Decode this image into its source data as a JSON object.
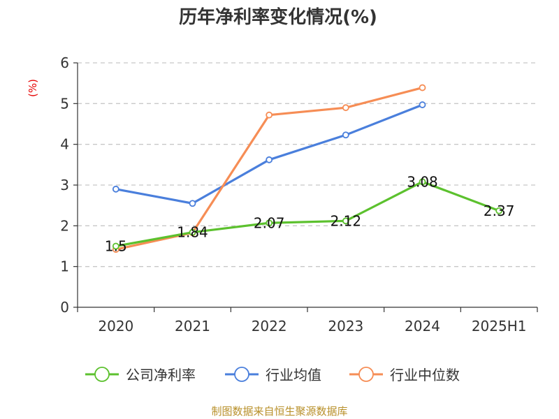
{
  "chart_data": {
    "type": "line",
    "title": "历年净利率变化情况(%)",
    "ylabel": "(%)",
    "xlabel": "",
    "categories": [
      "2020",
      "2021",
      "2022",
      "2023",
      "2024",
      "2025H1"
    ],
    "ylim": [
      0,
      6
    ],
    "yticks": [
      0,
      1,
      2,
      3,
      4,
      5,
      6
    ],
    "grid": true,
    "legend_position": "bottom",
    "series": [
      {
        "name": "公司净利率",
        "color": "#5cc12e",
        "values": [
          1.5,
          1.84,
          2.07,
          2.12,
          3.08,
          2.37
        ],
        "labels": [
          "1.5",
          "1.84",
          "2.07",
          "2.12",
          "3.08",
          "2.37"
        ]
      },
      {
        "name": "行业均值",
        "color": "#4a7fdc",
        "values": [
          2.9,
          2.55,
          3.62,
          4.23,
          4.97,
          null
        ]
      },
      {
        "name": "行业中位数",
        "color": "#f68d55",
        "values": [
          1.42,
          1.83,
          4.72,
          4.9,
          5.39,
          null
        ]
      }
    ]
  },
  "source_text": "制图数据来自恒生聚源数据库"
}
